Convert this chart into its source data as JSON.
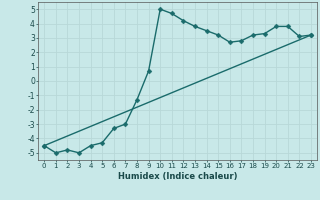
{
  "xlabel": "Humidex (Indice chaleur)",
  "background_color": "#c8e8e8",
  "grid_color": "#b8d8d8",
  "line_color": "#1a6b6b",
  "xlim": [
    -0.5,
    23.5
  ],
  "ylim": [
    -5.5,
    5.5
  ],
  "xticks": [
    0,
    1,
    2,
    3,
    4,
    5,
    6,
    7,
    8,
    9,
    10,
    11,
    12,
    13,
    14,
    15,
    16,
    17,
    18,
    19,
    20,
    21,
    22,
    23
  ],
  "yticks": [
    -5,
    -4,
    -3,
    -2,
    -1,
    0,
    1,
    2,
    3,
    4,
    5
  ],
  "curve1_x": [
    0,
    1,
    2,
    3,
    4,
    5,
    6,
    7,
    8,
    9,
    10,
    11,
    12,
    13,
    14,
    15,
    16,
    17,
    18,
    19,
    20,
    21,
    22,
    23
  ],
  "curve1_y": [
    -4.5,
    -5.0,
    -4.8,
    -5.0,
    -4.5,
    -4.3,
    -3.3,
    -3.0,
    -1.3,
    0.7,
    5.0,
    4.7,
    4.2,
    3.8,
    3.5,
    3.2,
    2.7,
    2.8,
    3.2,
    3.3,
    3.8,
    3.8,
    3.1,
    3.2
  ],
  "curve2_x": [
    0,
    23
  ],
  "curve2_y": [
    -4.5,
    3.2
  ],
  "markersize": 2.5,
  "linewidth": 1.0
}
